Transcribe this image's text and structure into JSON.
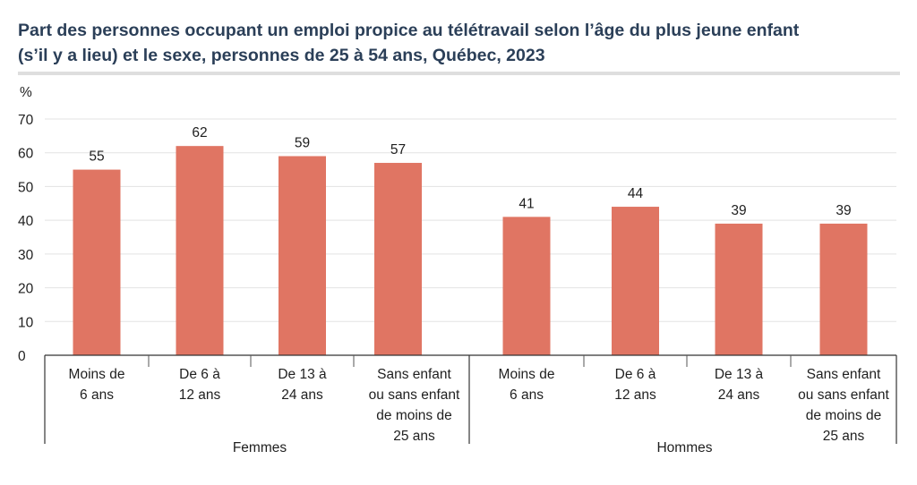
{
  "chart_data": {
    "type": "bar",
    "title_lines": [
      "Part des personnes occupant un emploi propice au télétravail selon l’âge du plus jeune enfant",
      "(s’il y a lieu) et le sexe, personnes de 25 à 54 ans, Québec, 2023"
    ],
    "ylabel": "%",
    "ylim": [
      0,
      70
    ],
    "yticks": [
      "0",
      "10",
      "20",
      "30",
      "40",
      "50",
      "60",
      "70"
    ],
    "grid": true,
    "color": "#e07563",
    "groups": [
      {
        "name": "Femmes",
        "categories": [
          [
            "Moins de",
            "6 ans"
          ],
          [
            "De 6 à",
            "12 ans"
          ],
          [
            "De 13 à",
            "24 ans"
          ],
          [
            "Sans enfant",
            "ou sans enfant",
            "de moins de",
            "25 ans"
          ]
        ],
        "values": [
          55,
          62,
          59,
          57
        ]
      },
      {
        "name": "Hommes",
        "categories": [
          [
            "Moins de",
            "6 ans"
          ],
          [
            "De 6 à",
            "12 ans"
          ],
          [
            "De 13 à",
            "24 ans"
          ],
          [
            "Sans enfant",
            "ou sans enfant",
            "de moins de",
            "25 ans"
          ]
        ],
        "values": [
          41,
          44,
          39,
          39
        ]
      }
    ]
  }
}
